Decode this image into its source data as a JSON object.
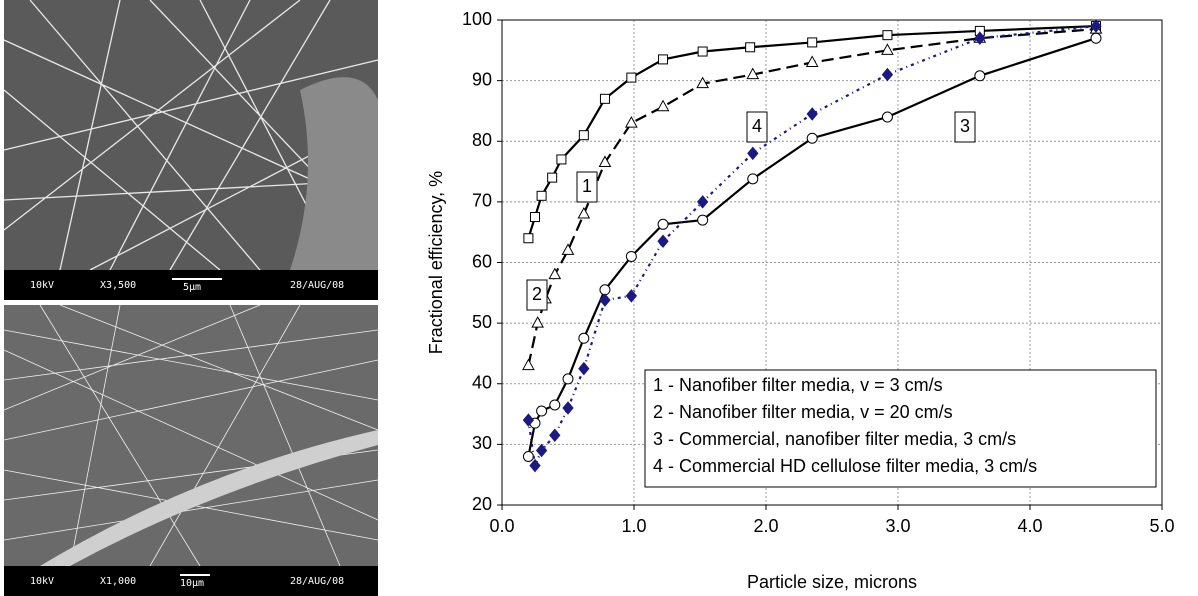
{
  "micrographs": [
    {
      "voltage": "10kV",
      "magnification": "X3,500",
      "scale": "5μm",
      "date": "28/AUG/08"
    },
    {
      "voltage": "10kV",
      "magnification": "X1,000",
      "scale": "10μm",
      "date": "28/AUG/08"
    }
  ],
  "chart_data": {
    "type": "line",
    "x_label": "Particle size, microns",
    "y_label": "Fractional efficiency, %",
    "xlim": [
      0,
      5
    ],
    "ylim": [
      20,
      100
    ],
    "xticks": [
      {
        "value": 0,
        "label": "0.0"
      },
      {
        "value": 1,
        "label": "1.0"
      },
      {
        "value": 2,
        "label": "2.0"
      },
      {
        "value": 3,
        "label": "3.0"
      },
      {
        "value": 4,
        "label": "4.0"
      },
      {
        "value": 5,
        "label": "5.0"
      }
    ],
    "yticks": [
      20,
      30,
      40,
      50,
      60,
      70,
      80,
      90,
      100
    ],
    "grid": true,
    "legend": "lower right",
    "annotations": [
      "1",
      "2",
      "3",
      "4"
    ],
    "series": [
      {
        "name": "1 - Nanofiber filter media, v = 3 cm/s",
        "color": "#000000",
        "marker": "square",
        "line_style": "solid",
        "x": [
          0.2,
          0.25,
          0.3,
          0.38,
          0.45,
          0.62,
          0.78,
          0.98,
          1.22,
          1.52,
          1.88,
          2.35,
          2.92,
          3.62,
          4.5
        ],
        "values": [
          64,
          67.5,
          71,
          74,
          77,
          81,
          87,
          90.5,
          93.5,
          94.8,
          95.5,
          96.3,
          97.5,
          98.2,
          99
        ]
      },
      {
        "name": "2 - Nanofiber filter media, v = 20 cm/s",
        "color": "#000000",
        "marker": "triangle",
        "line_style": "dashed",
        "x": [
          0.2,
          0.27,
          0.33,
          0.4,
          0.5,
          0.62,
          0.78,
          0.98,
          1.22,
          1.52,
          1.9,
          2.35,
          2.92,
          3.62,
          4.5
        ],
        "values": [
          43,
          50,
          54,
          58,
          62,
          68,
          76.5,
          83,
          85.7,
          89.5,
          91,
          93,
          95,
          97,
          98.5
        ]
      },
      {
        "name": "3 - Commercial, nanofiber filter media, 3 cm/s",
        "color": "#000000",
        "marker": "circle",
        "line_style": "solid",
        "x": [
          0.2,
          0.25,
          0.3,
          0.4,
          0.5,
          0.62,
          0.78,
          0.98,
          1.22,
          1.52,
          1.9,
          2.35,
          2.92,
          3.62,
          4.5
        ],
        "values": [
          28,
          33.5,
          35.5,
          36.5,
          40.8,
          47.5,
          55.5,
          61,
          66.3,
          67,
          73.8,
          80.5,
          84,
          90.8,
          97
        ]
      },
      {
        "name": "4 - Commercial HD cellulose filter media, 3 cm/s",
        "color": "#1a1a80",
        "marker": "diamond",
        "line_style": "dashdot",
        "x": [
          0.2,
          0.25,
          0.3,
          0.4,
          0.5,
          0.62,
          0.78,
          0.98,
          1.22,
          1.52,
          1.9,
          2.35,
          2.92,
          3.62,
          4.5
        ],
        "values": [
          34,
          26.5,
          29,
          31.5,
          36,
          42.5,
          53.8,
          54.5,
          63.5,
          70,
          78,
          84.5,
          91,
          97,
          99
        ]
      }
    ]
  }
}
